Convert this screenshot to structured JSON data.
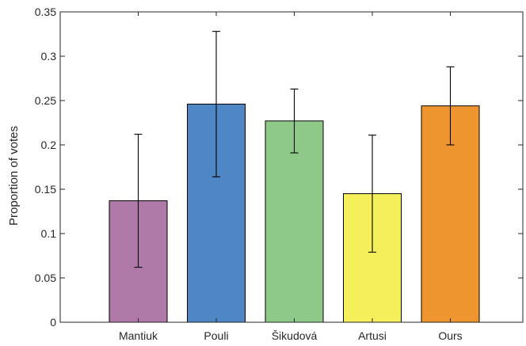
{
  "chart_data": {
    "type": "bar",
    "title": "",
    "xlabel": "",
    "ylabel": "Proportion of votes",
    "ylim": [
      0,
      0.35
    ],
    "yticks": [
      0,
      0.05,
      0.1,
      0.15,
      0.2,
      0.25,
      0.3,
      0.35
    ],
    "ytick_labels": [
      "0",
      "0.05",
      "0.1",
      "0.15",
      "0.2",
      "0.25",
      "0.3",
      "0.35"
    ],
    "categories": [
      "Mantiuk",
      "Pouli",
      "Šikudová",
      "Artusi",
      "Ours"
    ],
    "values": [
      0.137,
      0.246,
      0.227,
      0.145,
      0.244
    ],
    "error_low": [
      0.062,
      0.164,
      0.191,
      0.079,
      0.2
    ],
    "error_high": [
      0.212,
      0.328,
      0.263,
      0.211,
      0.288
    ],
    "colors": [
      "#b07aa8",
      "#4e86c6",
      "#8fc98a",
      "#f5ef5b",
      "#ef9530"
    ],
    "grid": false,
    "legend": "none"
  }
}
